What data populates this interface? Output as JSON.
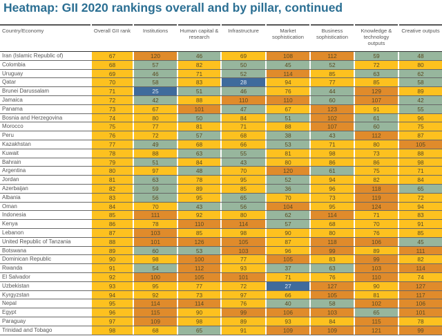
{
  "chart_data": {
    "type": "heatmap",
    "title": "Heatmap: GII 2020 rankings overall and by pillar, continued",
    "columns": [
      "Country/Economy",
      "Overall GII rank",
      "Institutions",
      "Human capital & research",
      "Infrastructure",
      "Market sophistication",
      "Business sophistication",
      "Knowledge & technology outputs",
      "Creative outputs"
    ],
    "colors": {
      "top": "#3f6b9c",
      "upper": "#97b69d",
      "middle": "#fdc11f",
      "lower": "#e08b2b"
    },
    "rows": [
      [
        "Iran (Islamic Republic of)",
        67,
        120,
        46,
        69,
        108,
        112,
        59,
        48
      ],
      [
        "Colombia",
        68,
        57,
        82,
        50,
        45,
        52,
        72,
        80
      ],
      [
        "Uruguay",
        69,
        46,
        71,
        52,
        114,
        85,
        63,
        62
      ],
      [
        "Qatar",
        70,
        58,
        83,
        28,
        94,
        77,
        85,
        58
      ],
      [
        "Brunei Darussalam",
        71,
        25,
        51,
        46,
        76,
        44,
        129,
        89
      ],
      [
        "Jamaica",
        72,
        42,
        88,
        110,
        110,
        60,
        107,
        42
      ],
      [
        "Panama",
        73,
        67,
        101,
        47,
        67,
        123,
        91,
        55
      ],
      [
        "Bosnia and Herzegovina",
        74,
        80,
        50,
        84,
        51,
        102,
        61,
        96
      ],
      [
        "Morocco",
        75,
        77,
        81,
        71,
        88,
        107,
        60,
        75
      ],
      [
        "Peru",
        76,
        72,
        57,
        68,
        38,
        43,
        112,
        87
      ],
      [
        "Kazakhstan",
        77,
        49,
        68,
        66,
        53,
        71,
        80,
        105
      ],
      [
        "Kuwait",
        78,
        88,
        63,
        55,
        81,
        98,
        73,
        88
      ],
      [
        "Bahrain",
        79,
        51,
        84,
        43,
        80,
        86,
        86,
        98
      ],
      [
        "Argentina",
        80,
        97,
        48,
        70,
        120,
        61,
        75,
        71
      ],
      [
        "Jordan",
        81,
        63,
        78,
        95,
        52,
        94,
        82,
        84
      ],
      [
        "Azerbaijan",
        82,
        59,
        89,
        85,
        36,
        96,
        118,
        65
      ],
      [
        "Albania",
        83,
        56,
        95,
        65,
        70,
        73,
        119,
        72
      ],
      [
        "Oman",
        84,
        70,
        43,
        56,
        104,
        95,
        124,
        94
      ],
      [
        "Indonesia",
        85,
        111,
        92,
        80,
        62,
        114,
        71,
        83
      ],
      [
        "Kenya",
        86,
        78,
        110,
        114,
        57,
        68,
        70,
        91
      ],
      [
        "Lebanon",
        87,
        103,
        85,
        98,
        90,
        80,
        76,
        85
      ],
      [
        "United Republic of Tanzania",
        88,
        101,
        126,
        105,
        87,
        118,
        106,
        45
      ],
      [
        "Botswana",
        89,
        60,
        53,
        103,
        96,
        99,
        89,
        111
      ],
      [
        "Dominican Republic",
        90,
        98,
        100,
        77,
        105,
        83,
        99,
        82
      ],
      [
        "Rwanda",
        91,
        54,
        112,
        93,
        37,
        63,
        103,
        114
      ],
      [
        "El Salvador",
        92,
        100,
        105,
        101,
        71,
        76,
        110,
        74
      ],
      [
        "Uzbekistan",
        93,
        95,
        77,
        72,
        27,
        127,
        90,
        127
      ],
      [
        "Kyrgyzstan",
        94,
        92,
        73,
        97,
        66,
        105,
        81,
        117
      ],
      [
        "Nepal",
        95,
        114,
        114,
        76,
        40,
        58,
        102,
        106
      ],
      [
        "Egypt",
        96,
        115,
        90,
        99,
        106,
        103,
        65,
        101
      ],
      [
        "Paraguay",
        97,
        109,
        98,
        89,
        93,
        84,
        115,
        78
      ],
      [
        "Trinidad and Tobago",
        98,
        68,
        65,
        91,
        109,
        109,
        121,
        99
      ]
    ]
  }
}
